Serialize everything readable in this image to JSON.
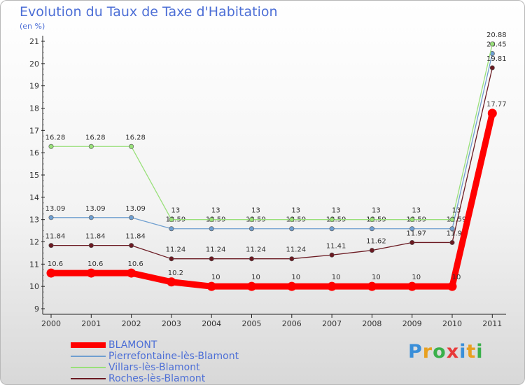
{
  "title": "Evolution du Taux de Taxe d'Habitation",
  "subtitle": "(en %)",
  "logo_text": "Proxiti",
  "chart_data": {
    "type": "line",
    "title": "Evolution du Taux de Taxe d'Habitation",
    "ylabel": "(en %)",
    "xlabel": "",
    "x": [
      "2000",
      "2001",
      "2002",
      "2003",
      "2004",
      "2005",
      "2006",
      "2007",
      "2008",
      "2009",
      "2010",
      "2011"
    ],
    "ylim": [
      9,
      21
    ],
    "yticks": [
      "9",
      "10",
      "11",
      "12",
      "13",
      "14",
      "15",
      "16",
      "17",
      "18",
      "19",
      "20",
      "21"
    ],
    "grid": false,
    "legend_position": "bottom-left",
    "series": [
      {
        "name": "BLAMONT",
        "color": "#ff0000",
        "values": [
          10.6,
          10.6,
          10.6,
          10.2,
          10,
          10,
          10,
          10,
          10,
          10,
          10,
          17.77
        ],
        "labels": [
          "10.6",
          "10.6",
          "10.6",
          "10.2",
          "10",
          "10",
          "10",
          "10",
          "10",
          "10",
          "10",
          "17.77"
        ]
      },
      {
        "name": "Pierrefontaine-lès-Blamont",
        "color": "#6f9fd0",
        "values": [
          13.09,
          13.09,
          13.09,
          12.59,
          12.59,
          12.59,
          12.59,
          12.59,
          12.59,
          12.59,
          12.59,
          20.45
        ],
        "labels": [
          "13.09",
          "13.09",
          "13.09",
          "12.59",
          "12.59",
          "12.59",
          "12.59",
          "12.59",
          "12.59",
          "12.59",
          "12.59",
          "20.45"
        ]
      },
      {
        "name": "Villars-lès-Blamont",
        "color": "#99e07a",
        "values": [
          16.28,
          16.28,
          16.28,
          13,
          13,
          13,
          13,
          13,
          13,
          13,
          13,
          20.88
        ],
        "labels": [
          "16.28",
          "16.28",
          "16.28",
          "13",
          "13",
          "13",
          "13",
          "13",
          "13",
          "13",
          "13",
          "20.88"
        ]
      },
      {
        "name": "Roches-lès-Blamont",
        "color": "#6b1a22",
        "values": [
          11.84,
          11.84,
          11.84,
          11.24,
          11.24,
          11.24,
          11.24,
          11.41,
          11.62,
          11.97,
          11.97,
          19.81
        ],
        "labels": [
          "11.84",
          "11.84",
          "11.84",
          "11.24",
          "11.24",
          "11.24",
          "11.24",
          "11.41",
          "11.62",
          "11.97",
          "11.97",
          "19.81"
        ]
      }
    ]
  }
}
